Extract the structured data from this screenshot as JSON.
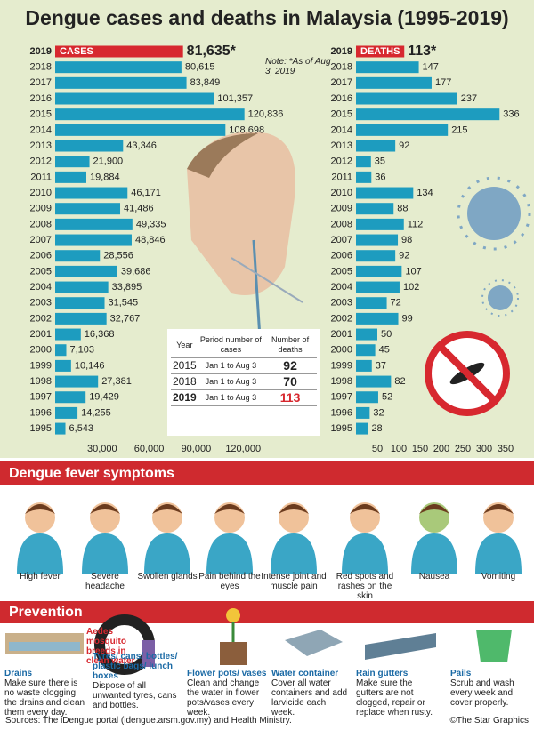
{
  "title": "Dengue cases and deaths in Malaysia (1995-2019)",
  "chart_data": [
    {
      "type": "bar",
      "orientation": "horizontal",
      "label": "CASES",
      "note": "Note: *As of Aug 3, 2019",
      "categories": [
        "2019",
        "2018",
        "2017",
        "2016",
        "2015",
        "2014",
        "2013",
        "2012",
        "2011",
        "2010",
        "2009",
        "2008",
        "2007",
        "2006",
        "2005",
        "2004",
        "2003",
        "2002",
        "2001",
        "2000",
        "1999",
        "1998",
        "1997",
        "1996",
        "1995"
      ],
      "values": [
        81635,
        80615,
        83849,
        101357,
        120836,
        108698,
        43346,
        21900,
        19884,
        46171,
        41486,
        49335,
        48846,
        28556,
        39686,
        33895,
        31545,
        32767,
        16368,
        7103,
        10146,
        27381,
        19429,
        14255,
        6543
      ],
      "value_labels": [
        "81,635*",
        "80,615",
        "83,849",
        "101,357",
        "120,836",
        "108,698",
        "43,346",
        "21,900",
        "19,884",
        "46,171",
        "41,486",
        "49,335",
        "48,846",
        "28,556",
        "39,686",
        "33,895",
        "31,545",
        "32,767",
        "16,368",
        "7,103",
        "10,146",
        "27,381",
        "19,429",
        "14,255",
        "6,543"
      ],
      "colors": [
        "#d7282f",
        "#1d9cbf",
        "#1d9cbf",
        "#1d9cbf",
        "#1d9cbf",
        "#1d9cbf",
        "#1d9cbf",
        "#1d9cbf",
        "#1d9cbf",
        "#1d9cbf",
        "#1d9cbf",
        "#1d9cbf",
        "#1d9cbf",
        "#1d9cbf",
        "#1d9cbf",
        "#1d9cbf",
        "#1d9cbf",
        "#1d9cbf",
        "#1d9cbf",
        "#1d9cbf",
        "#1d9cbf",
        "#1d9cbf",
        "#1d9cbf",
        "#1d9cbf",
        "#1d9cbf"
      ],
      "xlim": [
        0,
        150000
      ],
      "xticks": [
        {
          "value": 30000,
          "label": "30,000"
        },
        {
          "value": 60000,
          "label": "60,000"
        },
        {
          "value": 90000,
          "label": "90,000"
        },
        {
          "value": 120000,
          "label": "120,000"
        }
      ],
      "grid": false
    },
    {
      "type": "bar",
      "orientation": "horizontal",
      "label": "DEATHS",
      "categories": [
        "2019",
        "2018",
        "2017",
        "2016",
        "2015",
        "2014",
        "2013",
        "2012",
        "2011",
        "2010",
        "2009",
        "2008",
        "2007",
        "2006",
        "2005",
        "2004",
        "2003",
        "2002",
        "2001",
        "2000",
        "1999",
        "1998",
        "1997",
        "1996",
        "1995"
      ],
      "values": [
        113,
        147,
        177,
        237,
        336,
        215,
        92,
        35,
        36,
        134,
        88,
        112,
        98,
        92,
        107,
        102,
        72,
        99,
        50,
        45,
        37,
        82,
        52,
        32,
        28
      ],
      "value_labels": [
        "113*",
        "147",
        "177",
        "237",
        "336",
        "215",
        "92",
        "35",
        "36",
        "134",
        "88",
        "112",
        "98",
        "92",
        "107",
        "102",
        "72",
        "99",
        "50",
        "45",
        "37",
        "82",
        "52",
        "32",
        "28"
      ],
      "colors": [
        "#d7282f",
        "#1d9cbf",
        "#1d9cbf",
        "#1d9cbf",
        "#1d9cbf",
        "#1d9cbf",
        "#1d9cbf",
        "#1d9cbf",
        "#1d9cbf",
        "#1d9cbf",
        "#1d9cbf",
        "#1d9cbf",
        "#1d9cbf",
        "#1d9cbf",
        "#1d9cbf",
        "#1d9cbf",
        "#1d9cbf",
        "#1d9cbf",
        "#1d9cbf",
        "#1d9cbf",
        "#1d9cbf",
        "#1d9cbf",
        "#1d9cbf",
        "#1d9cbf",
        "#1d9cbf"
      ],
      "xlim": [
        0,
        375
      ],
      "xticks": [
        50,
        100,
        150,
        200,
        250,
        300,
        350
      ],
      "grid": false
    }
  ],
  "table": {
    "header": [
      "Year",
      "Period number of cases",
      "Number of deaths"
    ],
    "rows": [
      [
        "2015",
        "Jan 1 to Aug 3",
        92
      ],
      [
        "2018",
        "Jan 1 to Aug 3",
        70
      ],
      [
        "2019",
        "Jan 1 to Aug 3",
        113
      ]
    ]
  },
  "symptoms": {
    "title": "Dengue fever symptoms",
    "items": [
      "High fever",
      "Severe headache",
      "Swollen glands",
      "Pain behind the eyes",
      "Intense joint and muscle pain",
      "Red spots and rashes on the skin",
      "Nausea",
      "Vomiting"
    ]
  },
  "prevention": {
    "title": "Prevention",
    "callout": "Aedes mosquito breeds in clean water",
    "items": [
      {
        "name": "Drains",
        "text": "Make sure there is no waste clogging the drains and clean them every day."
      },
      {
        "name": "Tyres/ cans/ bottles/ plastic bags/ lunch boxes",
        "text": "Dispose of all unwanted tyres, cans and bottles."
      },
      {
        "name": "Flower pots/ vases",
        "text": "Clean and change the water in flower pots/vases every week."
      },
      {
        "name": "Water container",
        "text": "Cover all water containers and add larvicide each week."
      },
      {
        "name": "Rain gutters",
        "text": "Make sure the gutters are not clogged, repair or replace when rusty."
      },
      {
        "name": "Pails",
        "text": "Scrub and wash every week and cover properly."
      }
    ]
  },
  "sources": "Sources: The iDengue portal (idengue.arsm.gov.my) and Health Ministry.",
  "credit": "©The Star Graphics"
}
